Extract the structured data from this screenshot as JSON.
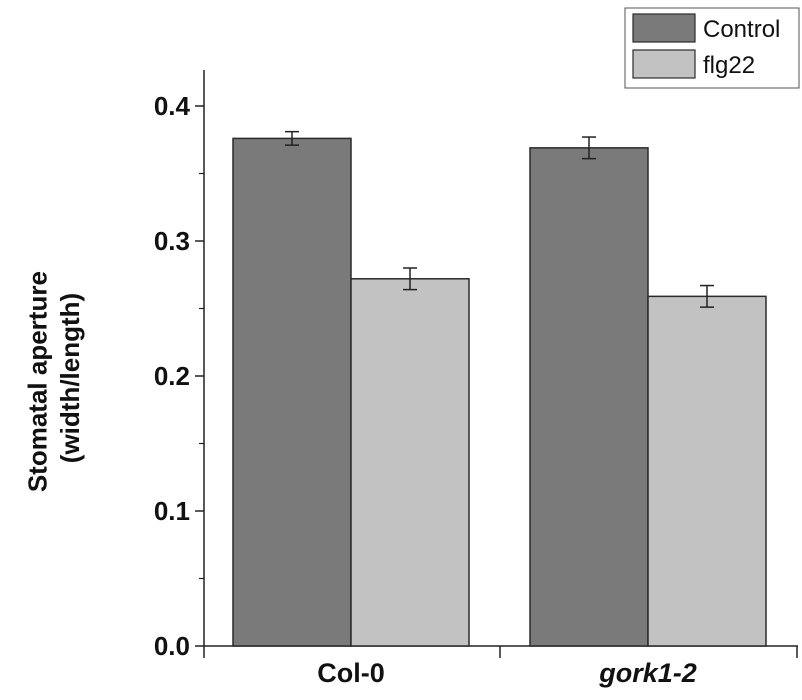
{
  "chart_data": {
    "type": "bar",
    "categories": [
      "Col-0",
      "gork1-2"
    ],
    "category_styles": [
      "normal",
      "italic"
    ],
    "ylabel": [
      "Stomatal aperture",
      "(width/length)"
    ],
    "ylim": [
      0,
      0.4
    ],
    "yticks": [
      "0.0",
      "0.1",
      "0.2",
      "0.3",
      "0.4"
    ],
    "grid": false,
    "legend_position": "top-right",
    "series": [
      {
        "name": "Control",
        "color": "#7a7a7a",
        "values": [
          0.376,
          0.369
        ],
        "errors": [
          0.005,
          0.008
        ]
      },
      {
        "name": "flg22",
        "color": "#c2c2c2",
        "values": [
          0.272,
          0.259
        ],
        "errors": [
          0.008,
          0.008
        ]
      }
    ]
  }
}
